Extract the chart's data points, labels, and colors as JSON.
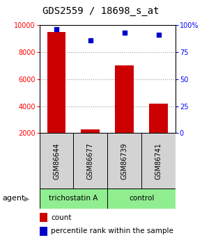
{
  "title": "GDS2559 / 18698_s_at",
  "samples": [
    "GSM86644",
    "GSM86677",
    "GSM86739",
    "GSM86741"
  ],
  "counts": [
    9500,
    2300,
    7000,
    4200
  ],
  "percentiles": [
    96,
    86,
    93,
    91
  ],
  "ylim_left": [
    2000,
    10000
  ],
  "ylim_right": [
    0,
    100
  ],
  "yticks_left": [
    2000,
    4000,
    6000,
    8000,
    10000
  ],
  "yticks_right": [
    0,
    25,
    50,
    75,
    100
  ],
  "ytick_labels_right": [
    "0",
    "25",
    "50",
    "75",
    "100%"
  ],
  "bar_color": "#cc0000",
  "dot_color": "#0000cc",
  "group_labels": [
    "trichostatin A",
    "control"
  ],
  "group_bg": "#90ee90",
  "sample_bg": "#d3d3d3",
  "agent_label": "agent",
  "legend_count_label": "count",
  "legend_pct_label": "percentile rank within the sample",
  "title_fontsize": 10,
  "tick_fontsize": 7,
  "sample_fontsize": 7,
  "group_fontsize": 7.5,
  "bar_width": 0.55
}
